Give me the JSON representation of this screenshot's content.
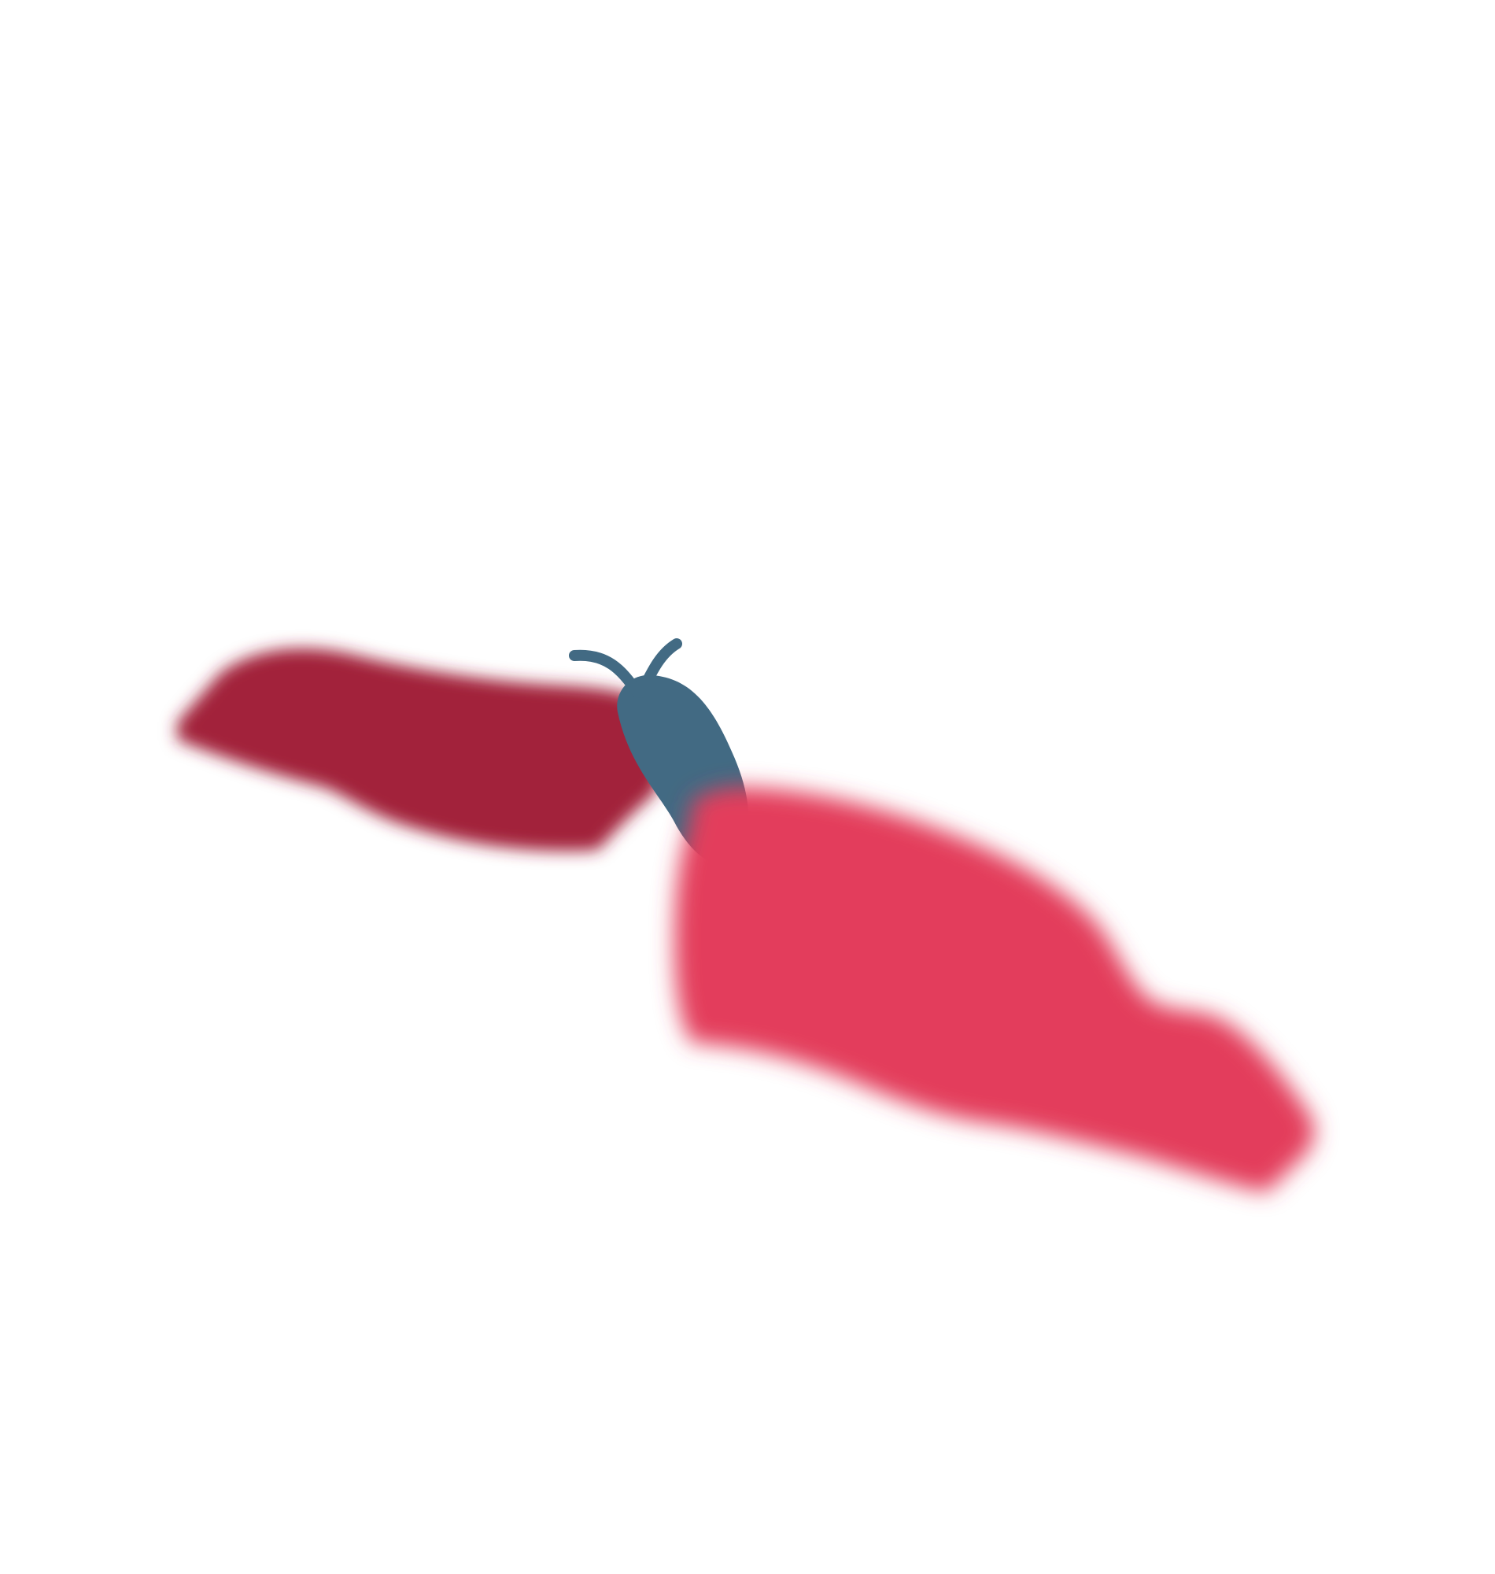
{
  "illustration": {
    "subject": "butterfly-in-flight",
    "colors": {
      "background": "#ffffff",
      "back_wing": "#a2233a",
      "front_wing": "#e33d5c",
      "body": "#426a83"
    },
    "wing_edge_style": "soft-feathered"
  }
}
